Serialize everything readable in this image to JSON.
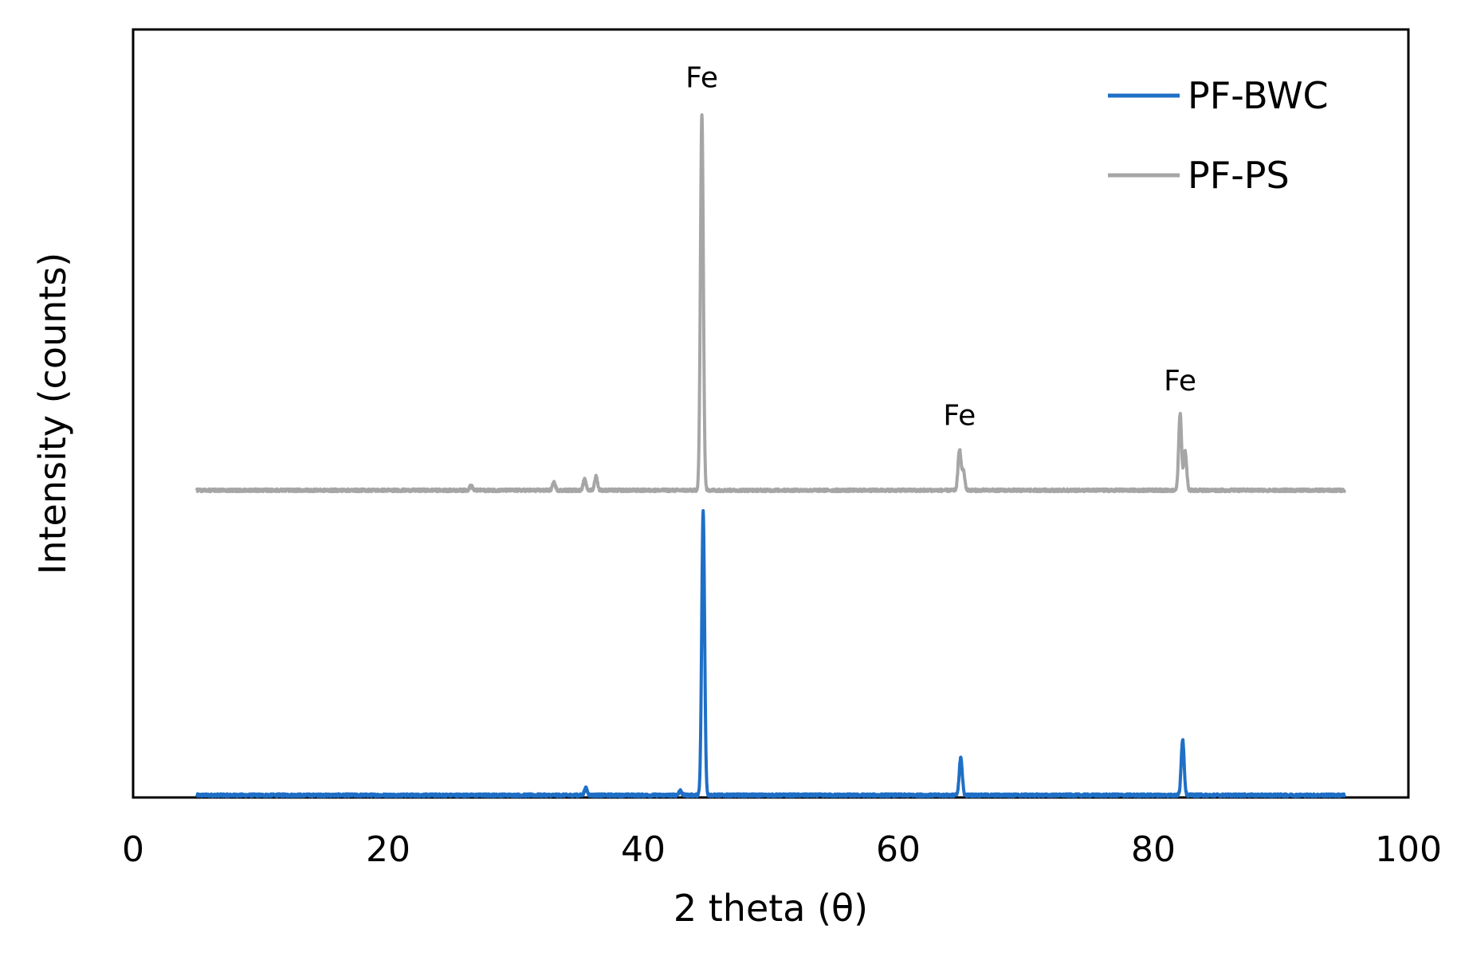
{
  "chart_data": {
    "type": "line",
    "title": "",
    "xlabel": "2 theta (θ)",
    "ylabel": "Intensity (counts)",
    "xlim": [
      0,
      100
    ],
    "xticks": [
      0,
      20,
      40,
      60,
      80,
      100
    ],
    "ylim": [
      0,
      100
    ],
    "y_tick_labels": false,
    "grid": false,
    "legend_position": "top-right",
    "series": [
      {
        "name": "PF-BWC",
        "color": "#1f6fc6",
        "baseline": 0.3,
        "x_range": [
          5,
          95
        ],
        "peaks": [
          {
            "x": 35.5,
            "height": 0.9
          },
          {
            "x": 42.9,
            "height": 0.6
          },
          {
            "x": 44.7,
            "height": 37.0
          },
          {
            "x": 64.9,
            "height": 5.0
          },
          {
            "x": 82.3,
            "height": 7.3
          }
        ]
      },
      {
        "name": "PF-PS",
        "color": "#a6a6a6",
        "baseline": 40.0,
        "x_range": [
          5,
          95
        ],
        "peaks": [
          {
            "x": 26.5,
            "height": 0.6
          },
          {
            "x": 33.0,
            "height": 1.0
          },
          {
            "x": 35.4,
            "height": 1.4
          },
          {
            "x": 36.3,
            "height": 1.8
          },
          {
            "x": 44.6,
            "height": 49.0
          },
          {
            "x": 64.8,
            "height": 5.3
          },
          {
            "x": 65.1,
            "height": 2.5
          },
          {
            "x": 82.1,
            "height": 10.0
          },
          {
            "x": 82.5,
            "height": 5.0
          }
        ]
      }
    ],
    "annotations": [
      {
        "text": "Fe",
        "x": 44.6,
        "y": 92.5
      },
      {
        "text": "Fe",
        "x": 64.8,
        "y": 48.5
      },
      {
        "text": "Fe",
        "x": 82.1,
        "y": 53.0
      }
    ]
  }
}
